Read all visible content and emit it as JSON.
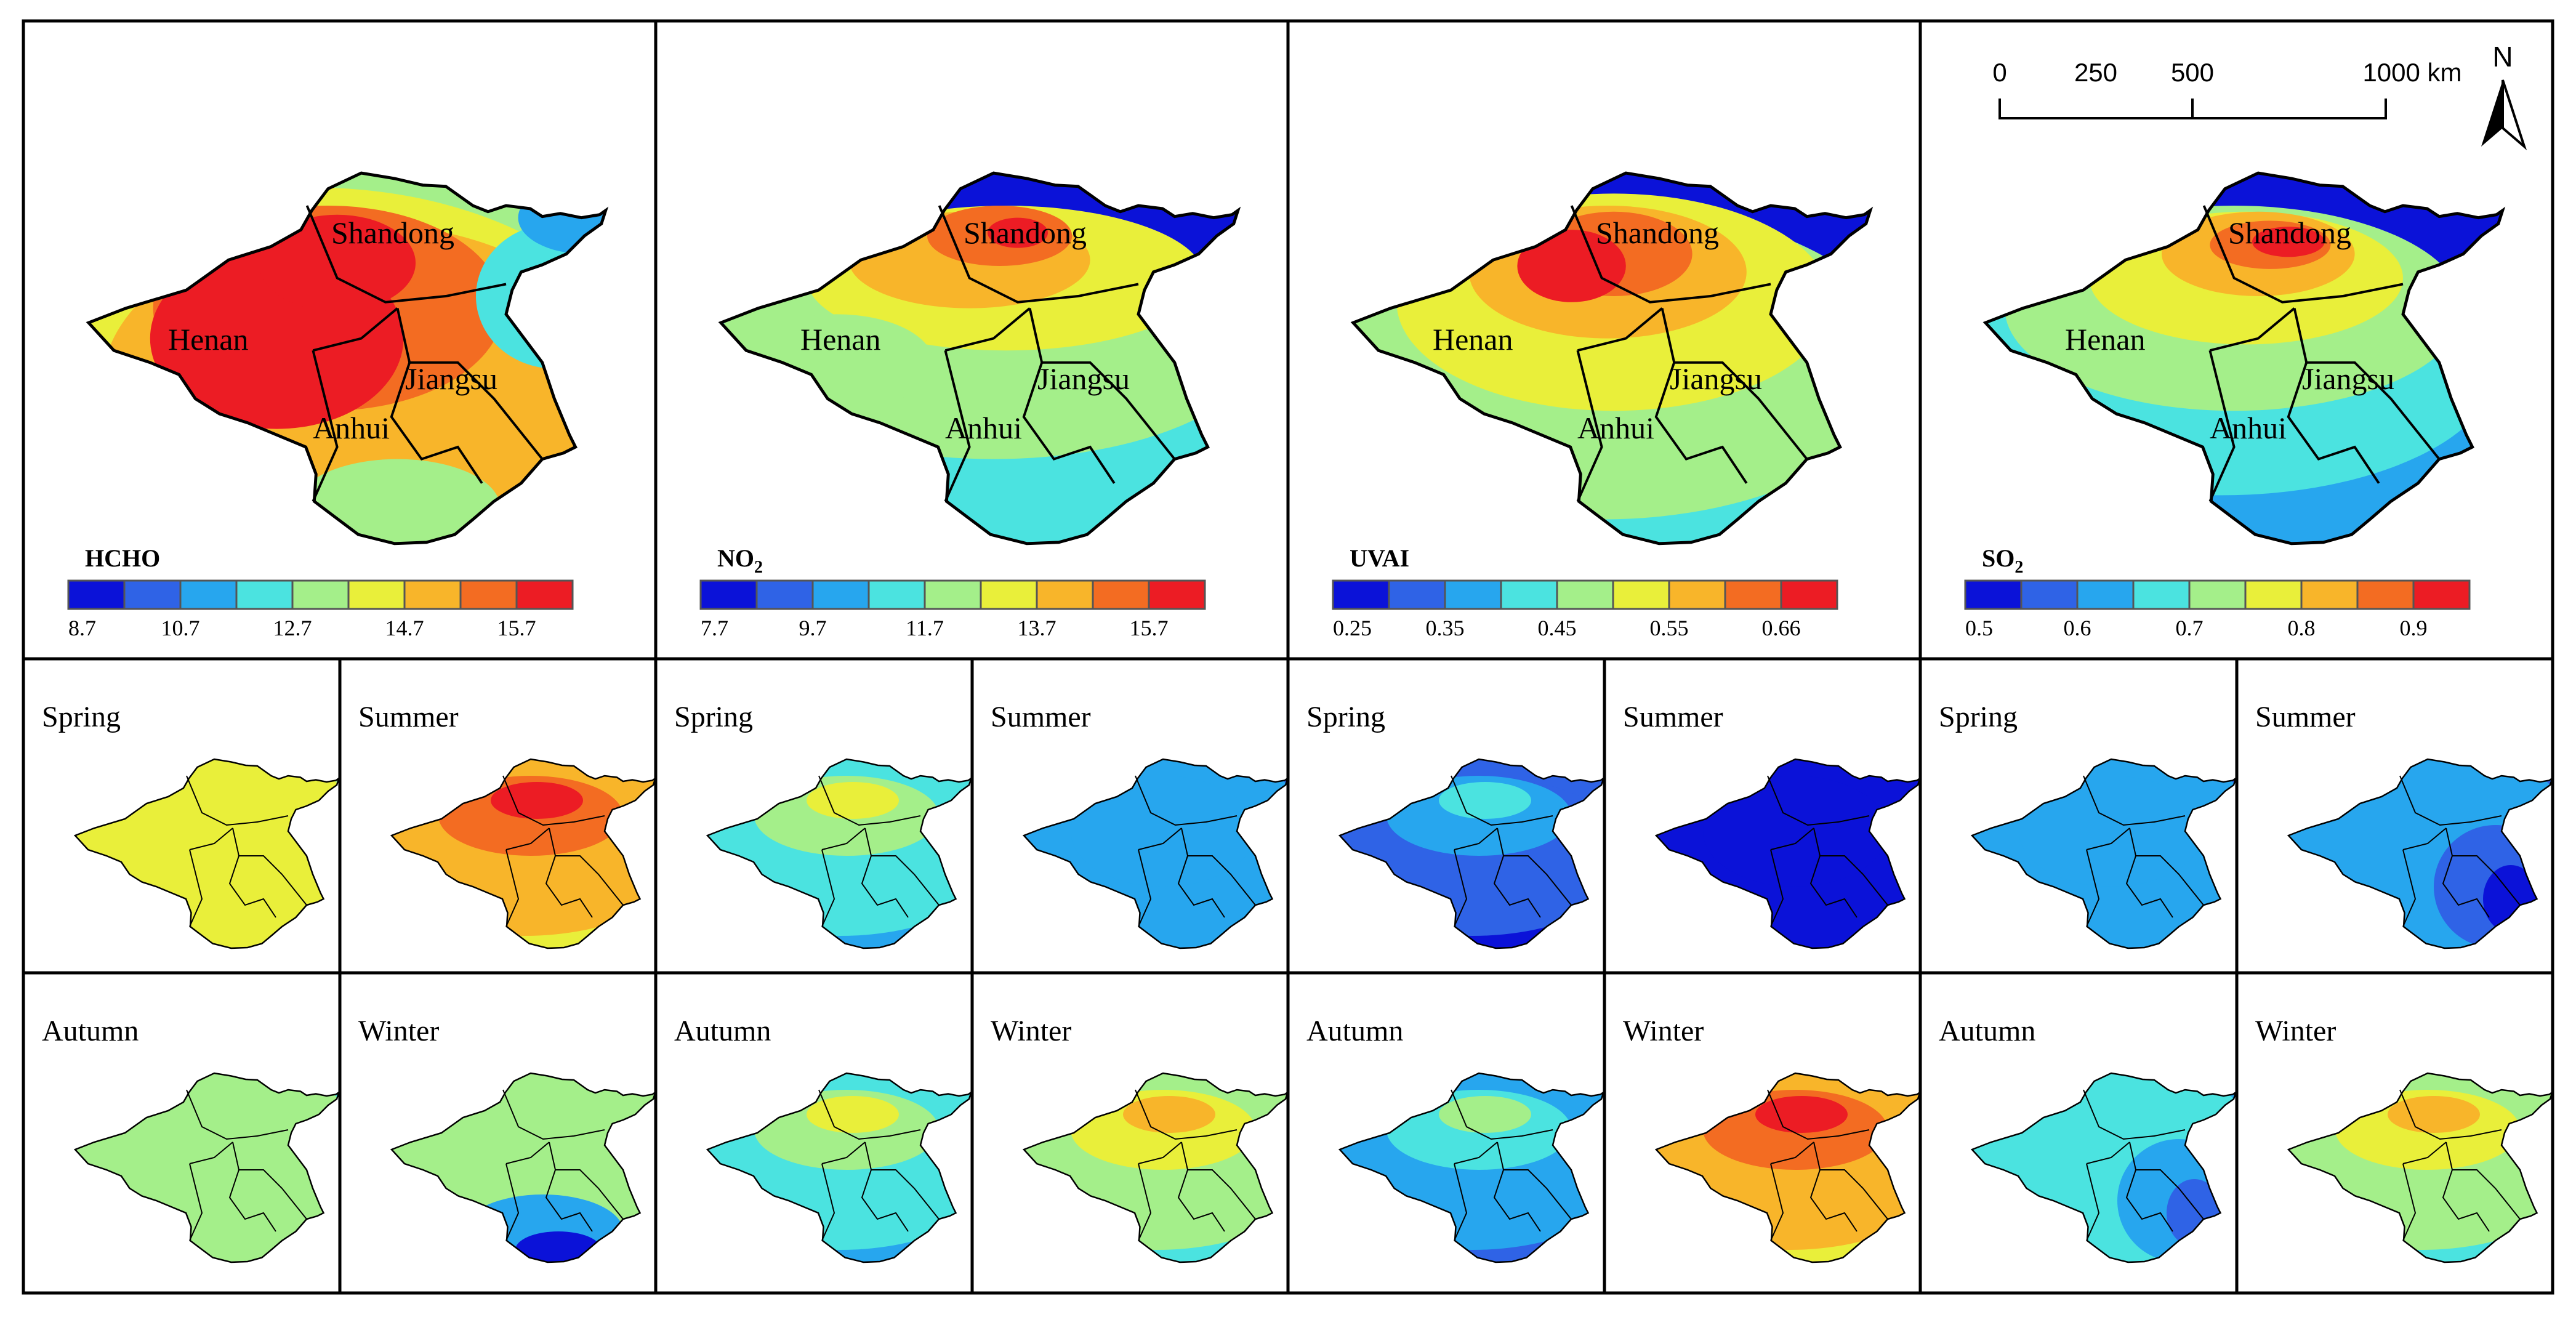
{
  "big_panels": [
    {
      "variable": "HCHO",
      "sub": "",
      "ticks": [
        "8.7",
        "10.7",
        "12.7",
        "14.7",
        "15.7"
      ],
      "pattern": "hcho"
    },
    {
      "variable": "NO",
      "sub": "2",
      "ticks": [
        "7.7",
        "9.7",
        "11.7",
        "13.7",
        "15.7"
      ],
      "pattern": "no2"
    },
    {
      "variable": "UVAI",
      "sub": "",
      "ticks": [
        "0.25",
        "0.35",
        "0.45",
        "0.55",
        "0.66"
      ],
      "pattern": "uvai"
    },
    {
      "variable": "SO",
      "sub": "2",
      "ticks": [
        "0.5",
        "0.6",
        "0.7",
        "0.8",
        "0.9"
      ],
      "pattern": "so2"
    }
  ],
  "province_labels": [
    "Shandong",
    "Henan",
    "Jiangsu",
    "Anhui"
  ],
  "legend_colors": [
    "#0b12d8",
    "#2f63e6",
    "#27a6ee",
    "#4be3e0",
    "#a4ef8a",
    "#e9ef3a",
    "#f8b52a",
    "#f36c22",
    "#ec1c24"
  ],
  "season_panels": [
    {
      "label": "Spring",
      "pattern": "flat",
      "level": 0.58
    },
    {
      "label": "Summer",
      "pattern": "north",
      "level": 0.88
    },
    {
      "label": "Spring",
      "pattern": "north",
      "level": 0.55
    },
    {
      "label": "Summer",
      "pattern": "flat",
      "level": 0.22
    },
    {
      "label": "Spring",
      "pattern": "north",
      "level": 0.3
    },
    {
      "label": "Summer",
      "pattern": "flat",
      "level": 0.06
    },
    {
      "label": "Spring",
      "pattern": "flat",
      "level": 0.26
    },
    {
      "label": "Summer",
      "pattern": "southeast",
      "level": 0.26
    },
    {
      "label": "Autumn",
      "pattern": "flat",
      "level": 0.52
    },
    {
      "label": "Winter",
      "pattern": "south",
      "level": 0.44
    },
    {
      "label": "Autumn",
      "pattern": "north",
      "level": 0.5
    },
    {
      "label": "Winter",
      "pattern": "north",
      "level": 0.65
    },
    {
      "label": "Autumn",
      "pattern": "north",
      "level": 0.42
    },
    {
      "label": "Winter",
      "pattern": "north",
      "level": 0.85
    },
    {
      "label": "Autumn",
      "pattern": "southeast",
      "level": 0.38
    },
    {
      "label": "Winter",
      "pattern": "north",
      "level": 0.58
    }
  ],
  "scale_bar": {
    "ticks": [
      "0",
      "250",
      "500",
      "1000 km"
    ]
  },
  "north_arrow": {
    "label": "N"
  }
}
